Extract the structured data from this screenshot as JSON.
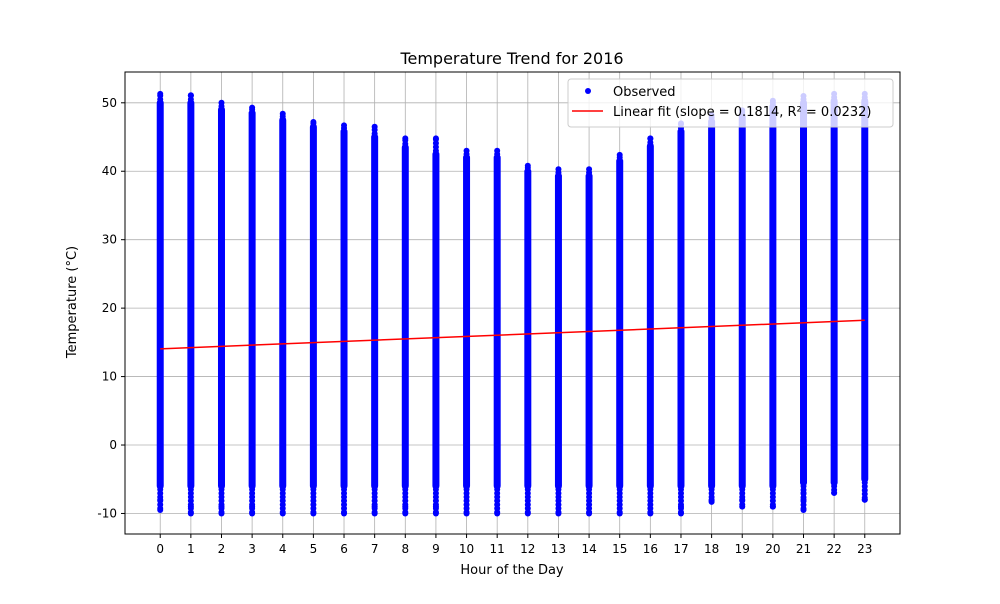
{
  "chart_data": {
    "type": "scatter",
    "title": "Temperature Trend for 2016",
    "xlabel": "Hour of the Day",
    "ylabel": "Temperature (°C)",
    "xlim": [
      -1.15,
      24.15
    ],
    "ylim": [
      -13,
      54.5
    ],
    "xticks": [
      0,
      1,
      2,
      3,
      4,
      5,
      6,
      7,
      8,
      9,
      10,
      11,
      12,
      13,
      14,
      15,
      16,
      17,
      18,
      19,
      20,
      21,
      22,
      23
    ],
    "yticks": [
      -10,
      0,
      10,
      20,
      30,
      40,
      50
    ],
    "grid": true,
    "legend_position": "top-right",
    "colors": {
      "observed": "#0000ff",
      "fit": "#ff0000",
      "grid": "#b0b0b0"
    },
    "series": [
      {
        "name": "Observed",
        "kind": "scatter",
        "hour": [
          0,
          1,
          2,
          3,
          4,
          5,
          6,
          7,
          8,
          9,
          10,
          11,
          12,
          13,
          14,
          15,
          16,
          17,
          18,
          19,
          20,
          21,
          22,
          23
        ],
        "min_temp": [
          -9.5,
          -10,
          -10,
          -10,
          -10,
          -10,
          -10,
          -10,
          -10,
          -10,
          -10,
          -10,
          -10,
          -10,
          -10,
          -10,
          -10,
          -10,
          -8.3,
          -9,
          -9,
          -9.5,
          -7,
          -8
        ],
        "max_temp": [
          51.3,
          51.1,
          50,
          49.3,
          48.4,
          47.2,
          46.7,
          46.5,
          44.8,
          44.8,
          43,
          43,
          40.8,
          40.3,
          40.3,
          42.4,
          44.8,
          47,
          48.2,
          48.9,
          50.3,
          51,
          51.3,
          51.3
        ],
        "dense_bottom": [
          -6.5,
          -6.5,
          -6.5,
          -6.5,
          -6.5,
          -6.5,
          -6.5,
          -6.5,
          -6.5,
          -6.5,
          -6.5,
          -6.5,
          -6.5,
          -6.5,
          -6.5,
          -6.5,
          -6.5,
          -6.5,
          -6.5,
          -6.5,
          -6.5,
          -6,
          -6,
          -5.5
        ],
        "dense_top": [
          50.5,
          50.5,
          49.5,
          49,
          48,
          47,
          46.3,
          45.5,
          44,
          43,
          42.5,
          42.5,
          40.5,
          39.8,
          39.8,
          42,
          44.2,
          46.3,
          47.8,
          48.6,
          50,
          50.5,
          50.8,
          50.8
        ],
        "outliers": [
          [
            0,
            -8
          ],
          [
            1,
            -9
          ],
          [
            2,
            -9
          ],
          [
            3,
            -9
          ],
          [
            7,
            -9
          ],
          [
            8,
            -9
          ],
          [
            9,
            -9
          ],
          [
            17,
            -9
          ],
          [
            18,
            -8
          ],
          [
            19,
            -8
          ],
          [
            20,
            -9
          ],
          [
            21,
            -8
          ],
          [
            21,
            -7
          ],
          [
            22,
            -7
          ],
          [
            23,
            -8
          ]
        ]
      },
      {
        "name": "Linear fit (slope = 0.1814, R² = 0.0232)",
        "kind": "line",
        "slope": 0.1814,
        "intercept": 14.05,
        "x": [
          0,
          23
        ]
      }
    ]
  }
}
